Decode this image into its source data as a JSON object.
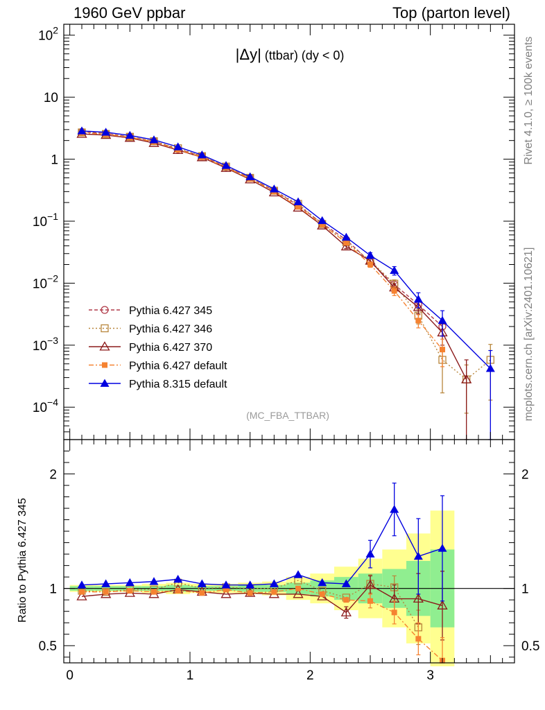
{
  "header": {
    "left": "1960 GeV ppbar",
    "right": "Top (parton level)"
  },
  "side_labels": {
    "top": "Rivet 4.1.0, ≥ 100k events",
    "bottom": "mcplots.cern.ch [arXiv:2401.10621]"
  },
  "colors": {
    "p345": "#b03a48",
    "p346": "#b8863b",
    "p370": "#8b1a1a",
    "pdef6": "#f58231",
    "p8": "#0000e0",
    "band_inner": "#90ee90",
    "band_outer": "#ffff90"
  },
  "chart_data": [
    {
      "type": "line",
      "title_main": "|Δy|",
      "title_sub": "(ttbar) (dy < 0)",
      "analysis": "(MC_FBA_TTBAR)",
      "yscale": "log",
      "ylim": [
        3e-05,
        150
      ],
      "xlim": [
        -0.05,
        3.7
      ],
      "y_ticks": [
        {
          "value": 100,
          "base": "10",
          "exp": "2"
        },
        {
          "value": 10,
          "base": "10",
          "exp": ""
        },
        {
          "value": 1,
          "base": "1",
          "exp": ""
        },
        {
          "value": 0.1,
          "base": "10",
          "exp": "−1"
        },
        {
          "value": 0.01,
          "base": "10",
          "exp": "−2"
        },
        {
          "value": 0.001,
          "base": "10",
          "exp": "−3"
        },
        {
          "value": 0.0001,
          "base": "10",
          "exp": "−4"
        }
      ],
      "legend": [
        "Pythia 6.427 345",
        "Pythia 6.427 346",
        "Pythia 6.427 370",
        "Pythia 6.427 default",
        "Pythia 8.315 default"
      ],
      "series": [
        {
          "name": "Pythia 6.427 345",
          "key": "p345",
          "marker": "open-circle",
          "dash": "5,3",
          "x": [
            0.1,
            0.3,
            0.5,
            0.7,
            0.9,
            1.1,
            1.3,
            1.5,
            1.7,
            1.9,
            2.1,
            2.3,
            2.5,
            2.7,
            2.9,
            3.1
          ],
          "y": [
            2.75,
            2.6,
            2.3,
            1.95,
            1.45,
            1.12,
            0.75,
            0.5,
            0.31,
            0.18,
            0.092,
            0.05,
            0.022,
            0.0095,
            0.0045,
            0.002
          ]
        },
        {
          "name": "Pythia 6.427 346",
          "key": "p346",
          "marker": "open-square",
          "dash": "2,3",
          "x": [
            0.1,
            0.3,
            0.5,
            0.7,
            0.9,
            1.1,
            1.3,
            1.5,
            1.7,
            1.9,
            2.1,
            2.3,
            2.5,
            2.7,
            2.9,
            3.1,
            3.3,
            3.5
          ],
          "y": [
            2.7,
            2.55,
            2.3,
            1.95,
            1.5,
            1.12,
            0.76,
            0.5,
            0.31,
            0.19,
            0.09,
            0.046,
            0.023,
            0.0098,
            0.003,
            0.00058,
            0.00028,
            0.00058
          ],
          "err_hi": [
            0,
            0,
            0,
            0,
            0,
            0,
            0,
            0,
            0,
            0,
            0,
            0,
            0,
            0.0015,
            0.0008,
            0.0003,
            0.0002,
            0.00045
          ],
          "err_lo": [
            0,
            0,
            0,
            0,
            0,
            0,
            0,
            0,
            0,
            0,
            0,
            0,
            0,
            0.0015,
            0.0008,
            0.00041,
            0.0002,
            0.00045
          ]
        },
        {
          "name": "Pythia 6.427 370",
          "key": "p370",
          "marker": "open-triangle",
          "dash": "",
          "x": [
            0.1,
            0.3,
            0.5,
            0.7,
            0.9,
            1.1,
            1.3,
            1.5,
            1.7,
            1.9,
            2.1,
            2.3,
            2.5,
            2.7,
            2.9,
            3.1,
            3.3
          ],
          "y": [
            2.55,
            2.45,
            2.2,
            1.82,
            1.4,
            1.07,
            0.72,
            0.47,
            0.29,
            0.165,
            0.085,
            0.039,
            0.023,
            0.0085,
            0.0041,
            0.0016,
            0.00028
          ],
          "err_hi": [
            0,
            0,
            0,
            0,
            0,
            0,
            0,
            0,
            0,
            0,
            0,
            0.003,
            0.002,
            0.0013,
            0.0009,
            0.0006,
            0.0003
          ],
          "err_lo": [
            0,
            0,
            0,
            0,
            0,
            0,
            0,
            0,
            0,
            0,
            0,
            0.003,
            0.002,
            0.0013,
            0.0009,
            0.0006,
            0.00027
          ]
        },
        {
          "name": "Pythia 6.427 default",
          "key": "pdef6",
          "marker": "filled-square",
          "dash": "7,3,2,3",
          "x": [
            0.1,
            0.3,
            0.5,
            0.7,
            0.9,
            1.1,
            1.3,
            1.5,
            1.7,
            1.9,
            2.1,
            2.3,
            2.5,
            2.7,
            2.9,
            3.1
          ],
          "y": [
            2.68,
            2.52,
            2.25,
            1.9,
            1.42,
            1.08,
            0.74,
            0.48,
            0.3,
            0.17,
            0.088,
            0.045,
            0.02,
            0.0075,
            0.0025,
            0.00085
          ],
          "err_hi": [
            0,
            0,
            0,
            0,
            0,
            0,
            0,
            0,
            0,
            0,
            0,
            0,
            0.002,
            0.0012,
            0.0006,
            0.0004
          ],
          "err_lo": [
            0,
            0,
            0,
            0,
            0,
            0,
            0,
            0,
            0,
            0,
            0,
            0,
            0.002,
            0.0012,
            0.0006,
            0.0004
          ]
        },
        {
          "name": "Pythia 8.315 default",
          "key": "p8",
          "marker": "filled-triangle",
          "dash": "",
          "x": [
            0.1,
            0.3,
            0.5,
            0.7,
            0.9,
            1.1,
            1.3,
            1.5,
            1.7,
            1.9,
            2.1,
            2.3,
            2.5,
            2.7,
            2.9,
            3.1,
            3.5
          ],
          "y": [
            2.85,
            2.72,
            2.42,
            2.05,
            1.58,
            1.17,
            0.79,
            0.52,
            0.33,
            0.205,
            0.102,
            0.055,
            0.028,
            0.016,
            0.0055,
            0.0025,
            0.00042
          ],
          "err_hi": [
            0,
            0,
            0,
            0,
            0,
            0,
            0,
            0,
            0,
            0,
            0,
            0,
            0.003,
            0.0025,
            0.0015,
            0.0011,
            0.0004
          ],
          "err_lo": [
            0,
            0,
            0,
            0,
            0,
            0,
            0,
            0,
            0,
            0,
            0,
            0,
            0.003,
            0.0025,
            0.0015,
            0.0011,
            0.00039
          ]
        }
      ]
    },
    {
      "type": "line",
      "ylabel": "Ratio to Pythia 6.427 345",
      "ylim": [
        0.35,
        2.3
      ],
      "xlim": [
        -0.05,
        3.7
      ],
      "y_ticks": [
        {
          "value": 2,
          "label": "2"
        },
        {
          "value": 1,
          "label": "1"
        },
        {
          "value": 0.5,
          "label": "0.5"
        }
      ],
      "x_ticks": [
        {
          "value": 0,
          "label": "0"
        },
        {
          "value": 1,
          "label": "1"
        },
        {
          "value": 2,
          "label": "2"
        },
        {
          "value": 3,
          "label": "3"
        }
      ],
      "reference_line": 1,
      "band": {
        "x_lo": [
          0,
          0.2,
          0.4,
          0.6,
          0.8,
          1.0,
          1.2,
          1.4,
          1.6,
          1.8,
          2.0,
          2.2,
          2.4,
          2.6,
          2.8,
          3.0
        ],
        "x_hi": [
          0.2,
          0.4,
          0.6,
          0.8,
          1.0,
          1.2,
          1.4,
          1.6,
          1.8,
          2.0,
          2.2,
          2.4,
          2.6,
          2.8,
          3.0,
          3.2
        ],
        "inner_lo": [
          0.98,
          0.98,
          0.98,
          0.98,
          0.97,
          0.98,
          0.98,
          0.97,
          0.97,
          0.95,
          0.93,
          0.9,
          0.87,
          0.83,
          0.76,
          0.66
        ],
        "inner_hi": [
          1.02,
          1.02,
          1.02,
          1.02,
          1.03,
          1.02,
          1.02,
          1.03,
          1.03,
          1.05,
          1.07,
          1.1,
          1.13,
          1.17,
          1.24,
          1.34
        ],
        "outer_lo": [
          0.97,
          0.97,
          0.97,
          0.96,
          0.95,
          0.96,
          0.96,
          0.95,
          0.94,
          0.9,
          0.87,
          0.81,
          0.74,
          0.66,
          0.52,
          0.32
        ],
        "outer_hi": [
          1.03,
          1.03,
          1.03,
          1.04,
          1.05,
          1.04,
          1.04,
          1.05,
          1.06,
          1.1,
          1.13,
          1.19,
          1.26,
          1.34,
          1.48,
          1.68
        ]
      },
      "series": [
        {
          "name": "Pythia 6.427 346",
          "key": "p346",
          "marker": "open-square",
          "dash": "2,3",
          "x": [
            0.1,
            0.3,
            0.5,
            0.7,
            0.9,
            1.1,
            1.3,
            1.5,
            1.7,
            1.9,
            2.1,
            2.3,
            2.5,
            2.7,
            2.9
          ],
          "y": [
            0.98,
            0.97,
            0.99,
            0.99,
            1.05,
            1.0,
            1.01,
            1.0,
            1.0,
            1.07,
            0.98,
            0.92,
            1.04,
            1.01,
            0.66
          ],
          "err_hi": [
            0,
            0,
            0,
            0,
            0,
            0,
            0,
            0,
            0,
            0,
            0,
            0,
            0.08,
            0.1,
            0.15
          ],
          "err_lo": [
            0,
            0,
            0,
            0,
            0,
            0,
            0,
            0,
            0,
            0,
            0,
            0,
            0.08,
            0.1,
            0.15
          ]
        },
        {
          "name": "Pythia 6.427 370",
          "key": "p370",
          "marker": "open-triangle",
          "dash": "",
          "x": [
            0.1,
            0.3,
            0.5,
            0.7,
            0.9,
            1.1,
            1.3,
            1.5,
            1.7,
            1.9,
            2.1,
            2.3,
            2.5,
            2.7,
            2.9,
            3.1
          ],
          "y": [
            0.93,
            0.95,
            0.96,
            0.95,
            0.99,
            0.97,
            0.95,
            0.96,
            0.95,
            0.95,
            0.93,
            0.79,
            1.03,
            0.91,
            0.91,
            0.85
          ],
          "err_hi": [
            0,
            0,
            0,
            0,
            0,
            0,
            0,
            0,
            0,
            0,
            0,
            0.05,
            0.08,
            0.12,
            0.22,
            0.3
          ],
          "err_lo": [
            0,
            0,
            0,
            0,
            0,
            0,
            0,
            0,
            0,
            0,
            0,
            0.05,
            0.08,
            0.12,
            0.22,
            0.3
          ]
        },
        {
          "name": "Pythia 6.427 default",
          "key": "pdef6",
          "marker": "filled-square",
          "dash": "7,3,2,3",
          "x": [
            0.1,
            0.3,
            0.5,
            0.7,
            0.9,
            1.1,
            1.3,
            1.5,
            1.7,
            1.9,
            2.1,
            2.3,
            2.5,
            2.7,
            2.9,
            3.1
          ],
          "y": [
            0.97,
            0.97,
            0.98,
            0.97,
            0.98,
            0.96,
            0.99,
            0.96,
            0.97,
            1.0,
            0.95,
            0.9,
            0.89,
            0.79,
            0.56,
            0.37
          ],
          "err_hi": [
            0,
            0,
            0,
            0,
            0,
            0,
            0,
            0,
            0,
            0,
            0,
            0,
            0.06,
            0.1,
            0.14,
            0.2
          ],
          "err_lo": [
            0,
            0,
            0,
            0,
            0,
            0,
            0,
            0,
            0,
            0,
            0,
            0,
            0.06,
            0.1,
            0.14,
            0.2
          ]
        },
        {
          "name": "Pythia 8.315 default",
          "key": "p8",
          "marker": "filled-triangle",
          "dash": "",
          "x": [
            0.1,
            0.3,
            0.5,
            0.7,
            0.9,
            1.1,
            1.3,
            1.5,
            1.7,
            1.9,
            2.1,
            2.3,
            2.5,
            2.7,
            2.9,
            3.1
          ],
          "y": [
            1.03,
            1.04,
            1.05,
            1.06,
            1.08,
            1.04,
            1.03,
            1.03,
            1.04,
            1.12,
            1.05,
            1.04,
            1.3,
            1.69,
            1.28,
            1.35
          ],
          "err_hi": [
            0,
            0,
            0,
            0,
            0,
            0,
            0,
            0,
            0,
            0,
            0,
            0,
            0.12,
            0.23,
            0.33,
            0.46
          ],
          "err_lo": [
            0,
            0,
            0,
            0,
            0,
            0,
            0,
            0,
            0,
            0,
            0,
            0,
            0.12,
            0.23,
            0.33,
            0.46
          ]
        }
      ]
    }
  ]
}
